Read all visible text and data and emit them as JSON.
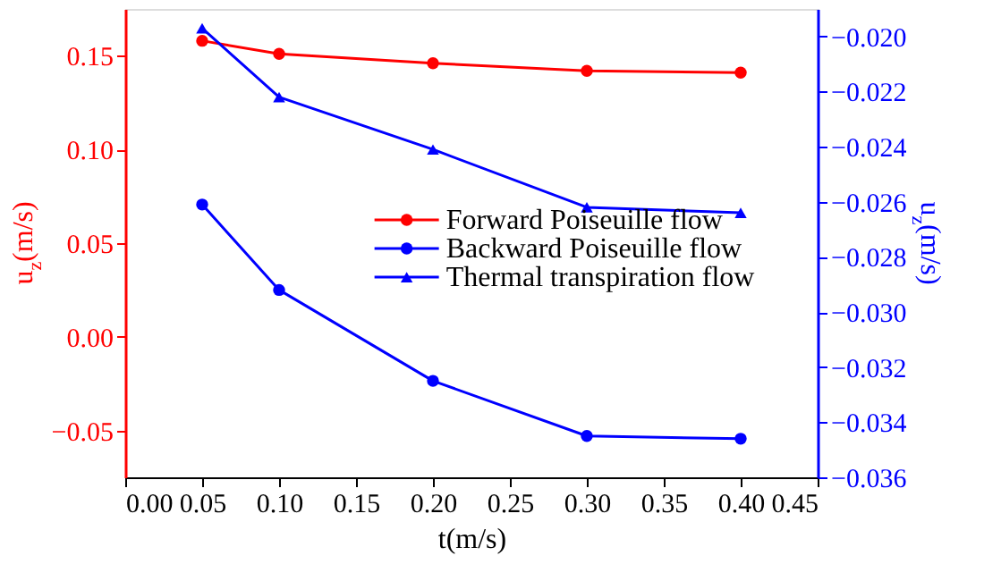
{
  "chart_data": {
    "type": "line",
    "xlabel": "t(m/s)",
    "ylabel": "u$_{z}$(m/s)",
    "y2label": "u$_{z}$(m/s)",
    "x": [
      0.05,
      0.1,
      0.2,
      0.3,
      0.4
    ],
    "xlim": [
      0,
      0.45
    ],
    "xticks": [
      {
        "value": 0,
        "label": "0.00"
      },
      {
        "value": 0.05,
        "label": "0.05"
      },
      {
        "value": 0.1,
        "label": "0.10"
      },
      {
        "value": 0.15,
        "label": "0.15"
      },
      {
        "value": 0.2,
        "label": "0.20"
      },
      {
        "value": 0.25,
        "label": "0.25"
      },
      {
        "value": 0.3,
        "label": "0.30"
      },
      {
        "value": 0.35,
        "label": "0.35"
      },
      {
        "value": 0.4,
        "label": "0.40"
      },
      {
        "value": 0.45,
        "label": "0.45"
      }
    ],
    "ylim": [
      -0.075,
      0.175
    ],
    "yticks": [
      {
        "value": -0.05,
        "label": "−0.05"
      },
      {
        "value": 0,
        "label": "0.00"
      },
      {
        "value": 0.05,
        "label": "0.05"
      },
      {
        "value": 0.1,
        "label": "0.10"
      },
      {
        "value": 0.15,
        "label": "0.15"
      }
    ],
    "y2lim": [
      -0.036,
      -0.019
    ],
    "y2ticks": [
      {
        "value": -0.036,
        "label": "−0.036"
      },
      {
        "value": -0.034,
        "label": "−0.034"
      },
      {
        "value": -0.032,
        "label": "−0.032"
      },
      {
        "value": -0.03,
        "label": "−0.030"
      },
      {
        "value": -0.028,
        "label": "−0.028"
      },
      {
        "value": -0.026,
        "label": "−0.026"
      },
      {
        "value": -0.024,
        "label": "−0.024"
      },
      {
        "value": -0.022,
        "label": "−0.022"
      },
      {
        "value": -0.02,
        "label": "−0.020"
      }
    ],
    "series": [
      {
        "name": "Forward Poiseuille flow",
        "color": "#ff0000",
        "marker": "circle",
        "values": [
          0.158,
          0.151,
          0.146,
          0.142,
          0.141
        ]
      },
      {
        "name": "Backward Poiseuille flow",
        "color": "#0000ff",
        "marker": "circle",
        "axis": "y2",
        "values": [
          -0.0261,
          -0.0292,
          -0.0325,
          -0.0345,
          -0.0346
        ]
      },
      {
        "name": "Thermal transpiration flow",
        "color": "#0000ff",
        "marker": "triangle",
        "axis": "y2",
        "values": [
          -0.0197,
          -0.0222,
          -0.0241,
          -0.0262,
          -0.0264
        ]
      }
    ],
    "legend": "right",
    "grid": false,
    "line_style": "solid"
  }
}
